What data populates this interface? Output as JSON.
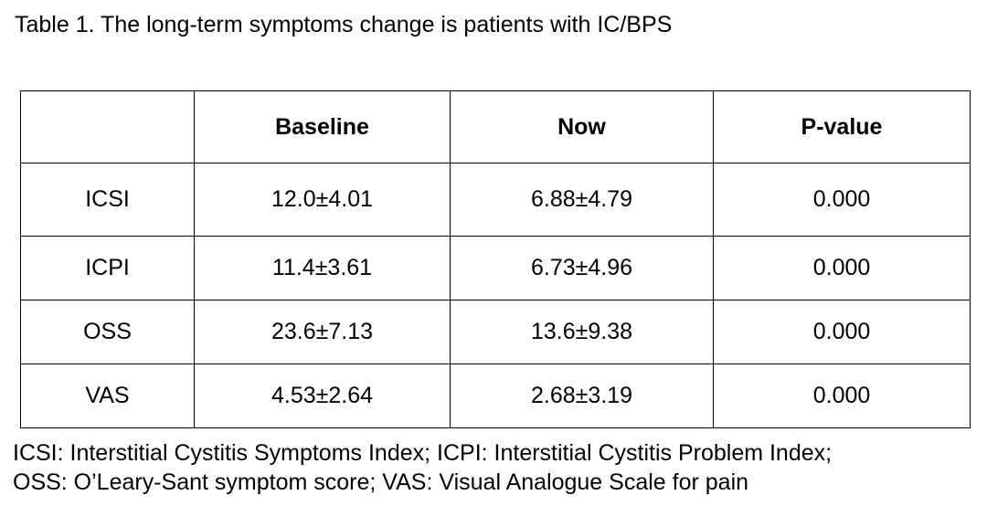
{
  "caption": "Table 1. The long-term symptoms change is patients with IC/BPS",
  "table": {
    "headers": [
      "",
      "Baseline",
      "Now",
      "P-value"
    ],
    "rows": [
      [
        "ICSI",
        "12.0±4.01",
        "6.88±4.79",
        "0.000"
      ],
      [
        "ICPI",
        "11.4±3.61",
        "6.73±4.96",
        "0.000"
      ],
      [
        "OSS",
        "23.6±7.13",
        "13.6±9.38",
        "0.000"
      ],
      [
        "VAS",
        "4.53±2.64",
        "2.68±3.19",
        "0.000"
      ]
    ]
  },
  "footnote": {
    "line1": "ICSI: Interstitial Cystitis Symptoms Index; ICPI: Interstitial Cystitis Problem Index;",
    "line2": "OSS: O’Leary-Sant symptom score; VAS: Visual Analogue Scale for pain"
  }
}
